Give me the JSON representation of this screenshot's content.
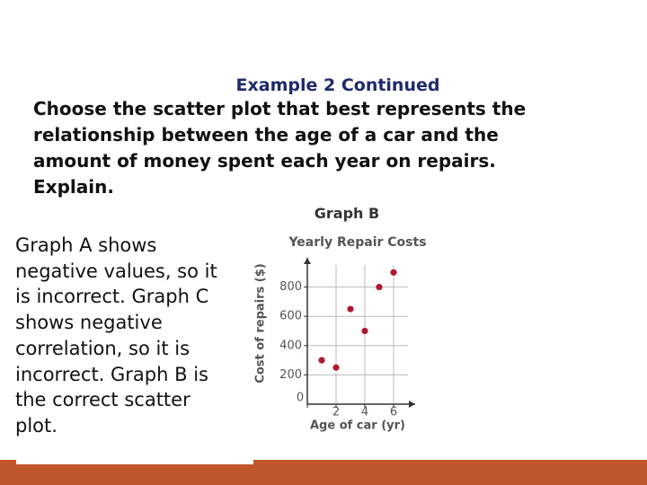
{
  "heading": "Example 2 Continued",
  "question": [
    "Choose the scatter plot that best represents the",
    "relationship between the age of a car and the",
    "amount of money spent each year on repairs.",
    "Explain."
  ],
  "graph_label": "Graph B",
  "explanation": [
    "Graph A shows",
    "negative values, so it",
    "is incorrect. Graph C",
    "shows negative",
    "correlation, so it is",
    "incorrect. Graph B is",
    "the correct scatter",
    "plot."
  ],
  "chart_data": {
    "type": "scatter",
    "title": "Yearly Repair Costs",
    "x_label": "Age of car (yr)",
    "y_label": "Cost of repairs ($)",
    "x": [
      1,
      2,
      3,
      4,
      5,
      6
    ],
    "values": [
      300,
      250,
      650,
      500,
      800,
      900
    ],
    "color": "#b01830",
    "xlim": [
      0,
      7.5
    ],
    "ylim": [
      0,
      1000
    ],
    "xticks": [
      0,
      2,
      4,
      6
    ],
    "yticks": [
      200,
      400,
      600,
      800
    ],
    "grid": true
  }
}
